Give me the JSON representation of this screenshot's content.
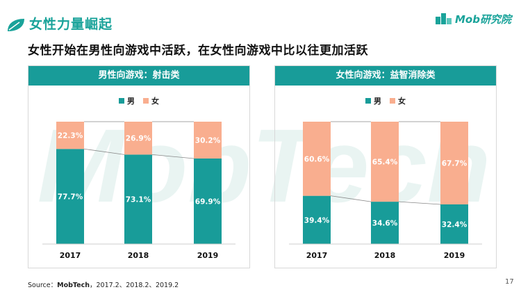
{
  "header": {
    "title": "女性力量崛起",
    "brand": "Mob研究院"
  },
  "subtitle": "女性开始在男性向游戏中活跃，在女性向游戏中比以往更加活跃",
  "watermark": "MobTech",
  "colors": {
    "male": "#189c99",
    "female": "#f9ae8f",
    "accent": "#1aa39a"
  },
  "chart_data": [
    {
      "type": "bar",
      "stacked": true,
      "title": "男性向游戏：射击类",
      "categories": [
        "2017",
        "2018",
        "2019"
      ],
      "legend": [
        "男",
        "女"
      ],
      "series": [
        {
          "name": "男",
          "values": [
            77.7,
            73.1,
            69.9
          ],
          "labels": [
            "77.7%",
            "73.1%",
            "69.9%"
          ]
        },
        {
          "name": "女",
          "values": [
            22.3,
            26.9,
            30.2
          ],
          "labels": [
            "22.3%",
            "26.9%",
            "30.2%"
          ]
        }
      ],
      "ylim": [
        0,
        100
      ]
    },
    {
      "type": "bar",
      "stacked": true,
      "title": "女性向游戏：益智消除类",
      "categories": [
        "2017",
        "2018",
        "2019"
      ],
      "legend": [
        "男",
        "女"
      ],
      "series": [
        {
          "name": "男",
          "values": [
            39.4,
            34.6,
            32.4
          ],
          "labels": [
            "39.4%",
            "34.6%",
            "32.4%"
          ]
        },
        {
          "name": "女",
          "values": [
            60.6,
            65.4,
            67.7
          ],
          "labels": [
            "60.6%",
            "65.4%",
            "67.7%"
          ]
        }
      ],
      "ylim": [
        0,
        100
      ]
    }
  ],
  "source": {
    "label": "Source：",
    "org": "MobTech",
    "dates": "，2017.2、2018.2、2019.2"
  },
  "page_number": "17"
}
